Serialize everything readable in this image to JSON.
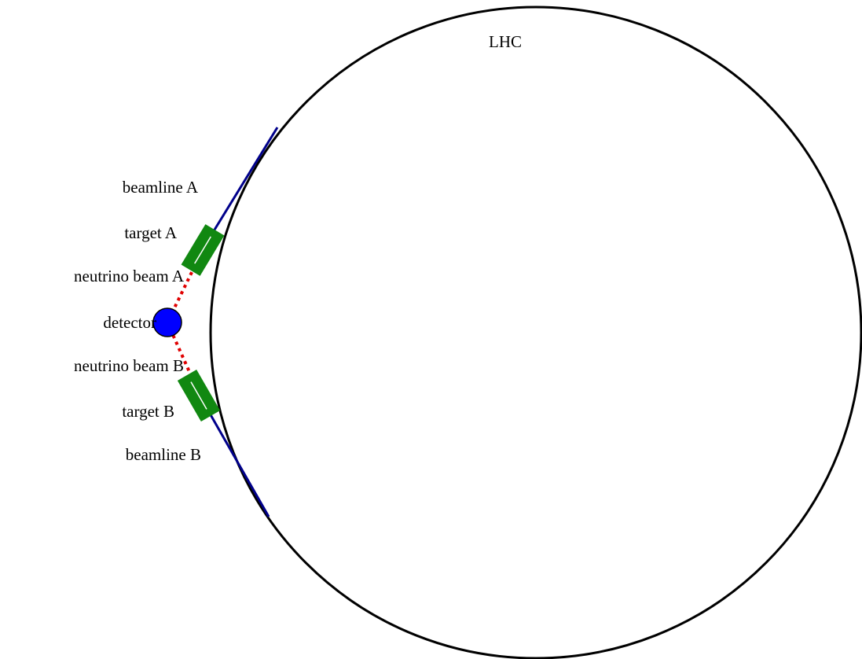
{
  "title": "LHC",
  "labels": {
    "beamline_a": "beamline A",
    "target_a": "target A",
    "neutrino_beam_a": "neutrino beam A",
    "detector": "detector",
    "neutrino_beam_b": "neutrino beam B",
    "target_b": "target B",
    "beamline_b": "beamline B"
  }
}
